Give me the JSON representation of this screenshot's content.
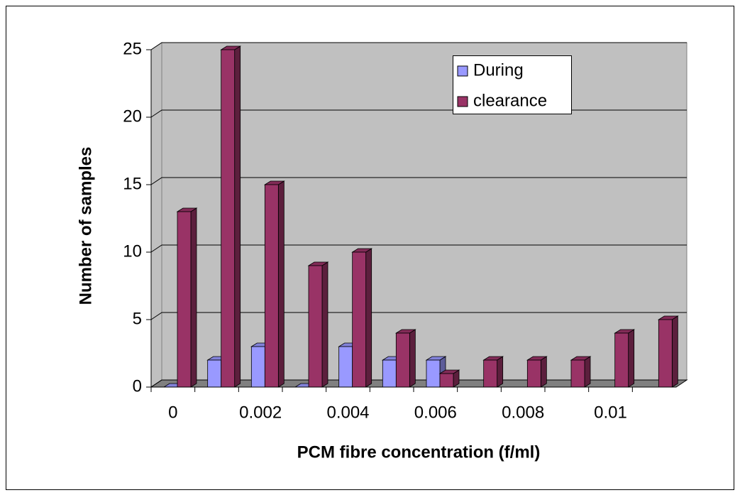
{
  "chart_data": {
    "type": "bar3d",
    "x_label": "PCM fibre concentration (f/ml)",
    "y_label": "Number of samples",
    "categories": [
      "0",
      null,
      "0.002",
      null,
      "0.004",
      null,
      "0.006",
      null,
      "0.008",
      null,
      "0.01",
      null
    ],
    "series": [
      {
        "name": "During",
        "color": "#9999ff",
        "values": [
          0,
          2,
          3,
          0,
          3,
          2,
          2,
          null,
          null,
          null,
          null,
          null
        ]
      },
      {
        "name": "clearance",
        "color": "#993366",
        "values": [
          13,
          25,
          15,
          9,
          10,
          4,
          1,
          2,
          2,
          2,
          4,
          5
        ]
      }
    ],
    "ylim": [
      0,
      25
    ],
    "yticks": [
      0,
      5,
      10,
      15,
      20,
      25
    ],
    "grid": true,
    "legend": "top-right"
  }
}
